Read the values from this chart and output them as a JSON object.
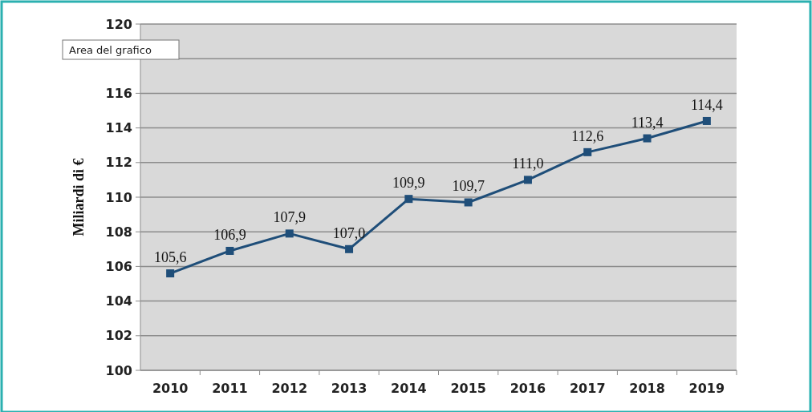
{
  "chart_data": {
    "type": "line",
    "ylabel": "Miliardi di €",
    "categories": [
      "2010",
      "2011",
      "2012",
      "2013",
      "2014",
      "2015",
      "2016",
      "2017",
      "2018",
      "2019"
    ],
    "series": [
      {
        "color": "#1f4e79",
        "values": [
          105.6,
          106.9,
          107.9,
          107.0,
          109.9,
          109.7,
          111.0,
          112.6,
          113.4,
          114.4
        ],
        "value_labels": [
          "105,6",
          "106,9",
          "107,9",
          "107,0",
          "109,9",
          "109,7",
          "111,0",
          "112,6",
          "113,4",
          "114,4"
        ]
      }
    ],
    "ylim": [
      100,
      120
    ],
    "yticks": [
      100,
      102,
      104,
      106,
      108,
      110,
      112,
      114,
      116,
      {
        "value": 118,
        "label": null
      },
      120
    ],
    "grid": "y",
    "marker": "square",
    "line_style": "solid",
    "annotations": [
      "Area del grafico"
    ]
  }
}
